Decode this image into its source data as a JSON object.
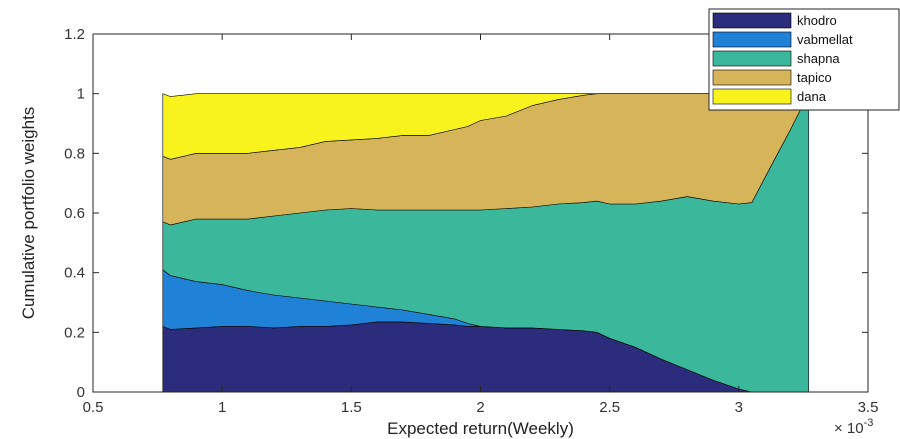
{
  "chart_data": {
    "type": "area",
    "title": "",
    "xlabel": "Expected return(Weekly)",
    "ylabel": "Cumulative portfolio weights",
    "x_multiplier_label": "× 10",
    "x_multiplier_exponent": "-3",
    "xlim": [
      0.5,
      3.5
    ],
    "ylim": [
      0,
      1.2
    ],
    "x_ticks": [
      0.5,
      1,
      1.5,
      2,
      2.5,
      3,
      3.5
    ],
    "x_tick_labels": [
      "0.5",
      "1",
      "1.5",
      "2",
      "2.5",
      "3",
      "3.5"
    ],
    "y_ticks": [
      0,
      0.2,
      0.4,
      0.6,
      0.8,
      1,
      1.2
    ],
    "y_tick_labels": [
      "0",
      "0.2",
      "0.4",
      "0.6",
      "0.8",
      "1",
      "1.2"
    ],
    "grid": false,
    "legend_position": "top-right",
    "x": [
      0.77,
      0.8,
      0.9,
      1.0,
      1.1,
      1.2,
      1.3,
      1.4,
      1.5,
      1.6,
      1.7,
      1.8,
      1.9,
      1.95,
      2.0,
      2.1,
      2.2,
      2.3,
      2.4,
      2.45,
      2.5,
      2.6,
      2.7,
      2.8,
      2.9,
      3.0,
      3.05,
      3.12,
      3.2,
      3.27
    ],
    "series": [
      {
        "name": "khodro",
        "color": "#2b2c7c",
        "values": [
          0.22,
          0.21,
          0.215,
          0.22,
          0.22,
          0.215,
          0.22,
          0.22,
          0.225,
          0.235,
          0.235,
          0.23,
          0.225,
          0.22,
          0.22,
          0.215,
          0.215,
          0.21,
          0.205,
          0.2,
          0.18,
          0.15,
          0.11,
          0.075,
          0.04,
          0.01,
          0.0,
          0.0,
          0.0,
          0.0
        ]
      },
      {
        "name": "vabmellat",
        "color": "#1f82d6",
        "values": [
          0.19,
          0.18,
          0.155,
          0.14,
          0.12,
          0.11,
          0.095,
          0.085,
          0.07,
          0.05,
          0.04,
          0.03,
          0.02,
          0.01,
          0.0,
          0.0,
          0.0,
          0.0,
          0.0,
          0.0,
          0.0,
          0.0,
          0.0,
          0.0,
          0.0,
          0.0,
          0.0,
          0.0,
          0.0,
          0.0
        ]
      },
      {
        "name": "shapna",
        "color": "#3bb89b",
        "values": [
          0.16,
          0.17,
          0.21,
          0.22,
          0.24,
          0.265,
          0.285,
          0.305,
          0.32,
          0.325,
          0.335,
          0.35,
          0.365,
          0.38,
          0.39,
          0.4,
          0.405,
          0.42,
          0.43,
          0.44,
          0.45,
          0.48,
          0.53,
          0.58,
          0.6,
          0.62,
          0.635,
          0.75,
          0.88,
          1.0
        ]
      },
      {
        "name": "tapico",
        "color": "#d5b45a",
        "values": [
          0.22,
          0.22,
          0.22,
          0.22,
          0.22,
          0.22,
          0.22,
          0.23,
          0.23,
          0.24,
          0.25,
          0.25,
          0.27,
          0.28,
          0.3,
          0.31,
          0.34,
          0.35,
          0.36,
          0.36,
          0.37,
          0.37,
          0.36,
          0.345,
          0.36,
          0.37,
          0.365,
          0.25,
          0.12,
          0.0
        ]
      },
      {
        "name": "dana",
        "color": "#f9f31d",
        "values": [
          0.21,
          0.21,
          0.2,
          0.2,
          0.2,
          0.19,
          0.18,
          0.16,
          0.155,
          0.15,
          0.14,
          0.14,
          0.12,
          0.11,
          0.09,
          0.075,
          0.04,
          0.02,
          0.005,
          0.0,
          0.0,
          0.0,
          0.0,
          0.0,
          0.0,
          0.0,
          0.0,
          0.0,
          0.0,
          0.0
        ]
      }
    ]
  }
}
